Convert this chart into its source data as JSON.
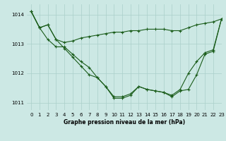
{
  "background_color": "#cce8e4",
  "grid_color": "#aacfca",
  "line_color": "#1a5c1a",
  "xlabel": "Graphe pression niveau de la mer (hPa)",
  "xlim": [
    -0.5,
    23
  ],
  "ylim": [
    1010.75,
    1014.35
  ],
  "yticks": [
    1011,
    1012,
    1013,
    1014
  ],
  "xticks": [
    0,
    1,
    2,
    3,
    4,
    5,
    6,
    7,
    8,
    9,
    10,
    11,
    12,
    13,
    14,
    15,
    16,
    17,
    18,
    19,
    20,
    21,
    22,
    23
  ],
  "line1_x": [
    0,
    1,
    2,
    3,
    4,
    5,
    6,
    7,
    8,
    9,
    10,
    11,
    12,
    13,
    14,
    15,
    16,
    17,
    18,
    19,
    20,
    21,
    22,
    23
  ],
  "line1_y": [
    1014.1,
    1013.55,
    1013.65,
    1013.15,
    1013.05,
    1013.1,
    1013.2,
    1013.25,
    1013.3,
    1013.35,
    1013.4,
    1013.4,
    1013.45,
    1013.45,
    1013.5,
    1013.5,
    1013.5,
    1013.45,
    1013.45,
    1013.55,
    1013.65,
    1013.7,
    1013.75,
    1013.85
  ],
  "line2_x": [
    0,
    1,
    2,
    3,
    4,
    5,
    6,
    7,
    8,
    9,
    10,
    11,
    12,
    13,
    14,
    15,
    16,
    17,
    18,
    19,
    20,
    21,
    22,
    23
  ],
  "line2_y": [
    1014.1,
    1013.55,
    1013.15,
    1012.9,
    1012.9,
    1012.65,
    1012.4,
    1012.2,
    1011.85,
    1011.55,
    1011.2,
    1011.2,
    1011.3,
    1011.55,
    1011.45,
    1011.4,
    1011.35,
    1011.25,
    1011.45,
    1012.0,
    1012.4,
    1012.7,
    1012.8,
    1013.85
  ],
  "line3_x": [
    0,
    1,
    2,
    3,
    4,
    5,
    6,
    7,
    8,
    9,
    10,
    11,
    12,
    13,
    14,
    15,
    16,
    17,
    18,
    19,
    20,
    21,
    22,
    23
  ],
  "line3_y": [
    1014.1,
    1013.55,
    1013.65,
    1013.15,
    1012.85,
    1012.55,
    1012.25,
    1011.95,
    1011.85,
    1011.55,
    1011.15,
    1011.15,
    1011.25,
    1011.55,
    1011.45,
    1011.4,
    1011.35,
    1011.2,
    1011.4,
    1011.45,
    1011.95,
    1012.65,
    1012.75,
    1013.85
  ],
  "marker": "+",
  "marker_size": 3,
  "linewidth": 0.8,
  "tick_fontsize": 5,
  "xlabel_fontsize": 5.5
}
